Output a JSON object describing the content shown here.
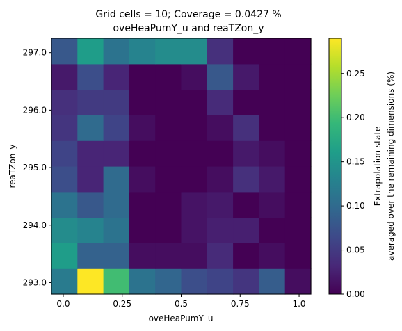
{
  "chart_data": {
    "type": "heatmap",
    "title": [
      "Grid cells = 10; Coverage = 0.0427 %",
      "oveHeaPumY_u and reaTZon_y"
    ],
    "xlabel": "oveHeaPumY_u",
    "ylabel": "reaTZon_y",
    "colorbar_label": [
      "Extrapolation state",
      "averaged over the remaining dimensions (%)"
    ],
    "colormap": "viridis",
    "x_range": [
      -0.05,
      1.05
    ],
    "y_range": [
      292.8,
      297.25
    ],
    "x_ticks": [
      {
        "value": 0.0,
        "label": "0.0"
      },
      {
        "value": 0.25,
        "label": "0.25"
      },
      {
        "value": 0.5,
        "label": "0.5"
      },
      {
        "value": 0.75,
        "label": "0.75"
      },
      {
        "value": 1.0,
        "label": "1.0"
      }
    ],
    "y_ticks": [
      {
        "value": 293.0,
        "label": "293.0"
      },
      {
        "value": 294.0,
        "label": "294.0"
      },
      {
        "value": 295.0,
        "label": "295.0"
      },
      {
        "value": 296.0,
        "label": "296.0"
      },
      {
        "value": 297.0,
        "label": "297.0"
      }
    ],
    "colorbar_range": [
      0,
      0.29
    ],
    "colorbar_ticks": [
      {
        "value": 0.0,
        "label": "0.00"
      },
      {
        "value": 0.05,
        "label": "0.05"
      },
      {
        "value": 0.1,
        "label": "0.10"
      },
      {
        "value": 0.15,
        "label": "0.15"
      },
      {
        "value": 0.2,
        "label": "0.20"
      },
      {
        "value": 0.25,
        "label": "0.25"
      }
    ],
    "x_edges": [
      -0.05,
      0.06,
      0.17,
      0.28,
      0.39,
      0.5,
      0.61,
      0.72,
      0.83,
      0.94,
      1.05
    ],
    "y_edges": [
      292.8,
      293.245,
      293.69,
      294.135,
      294.58,
      295.025,
      295.47,
      295.915,
      296.36,
      296.805,
      297.25
    ],
    "values": [
      [
        0.12,
        0.29,
        0.2,
        0.11,
        0.095,
        0.07,
        0.06,
        0.045,
        0.085,
        0.01
      ],
      [
        0.16,
        0.09,
        0.09,
        0.01,
        0.01,
        0.01,
        0.035,
        0.0,
        0.01,
        0.0
      ],
      [
        0.14,
        0.13,
        0.11,
        0.0,
        0.0,
        0.015,
        0.025,
        0.025,
        0.0,
        0.0
      ],
      [
        0.11,
        0.08,
        0.1,
        0.0,
        0.0,
        0.015,
        0.02,
        0.0,
        0.01,
        0.0
      ],
      [
        0.07,
        0.03,
        0.1,
        0.01,
        0.0,
        0.0,
        0.01,
        0.04,
        0.02,
        0.0
      ],
      [
        0.06,
        0.03,
        0.03,
        0.0,
        0.0,
        0.0,
        0.0,
        0.02,
        0.01,
        0.0
      ],
      [
        0.045,
        0.1,
        0.06,
        0.01,
        0.0,
        0.0,
        0.01,
        0.04,
        0.0,
        0.0
      ],
      [
        0.04,
        0.05,
        0.05,
        0.0,
        0.0,
        0.0,
        0.035,
        0.0,
        0.0,
        0.0
      ],
      [
        0.02,
        0.07,
        0.03,
        0.0,
        0.0,
        0.01,
        0.08,
        0.02,
        0.0,
        0.0
      ],
      [
        0.08,
        0.16,
        0.11,
        0.13,
        0.14,
        0.14,
        0.04,
        0.0,
        0.0,
        0.0
      ]
    ]
  }
}
